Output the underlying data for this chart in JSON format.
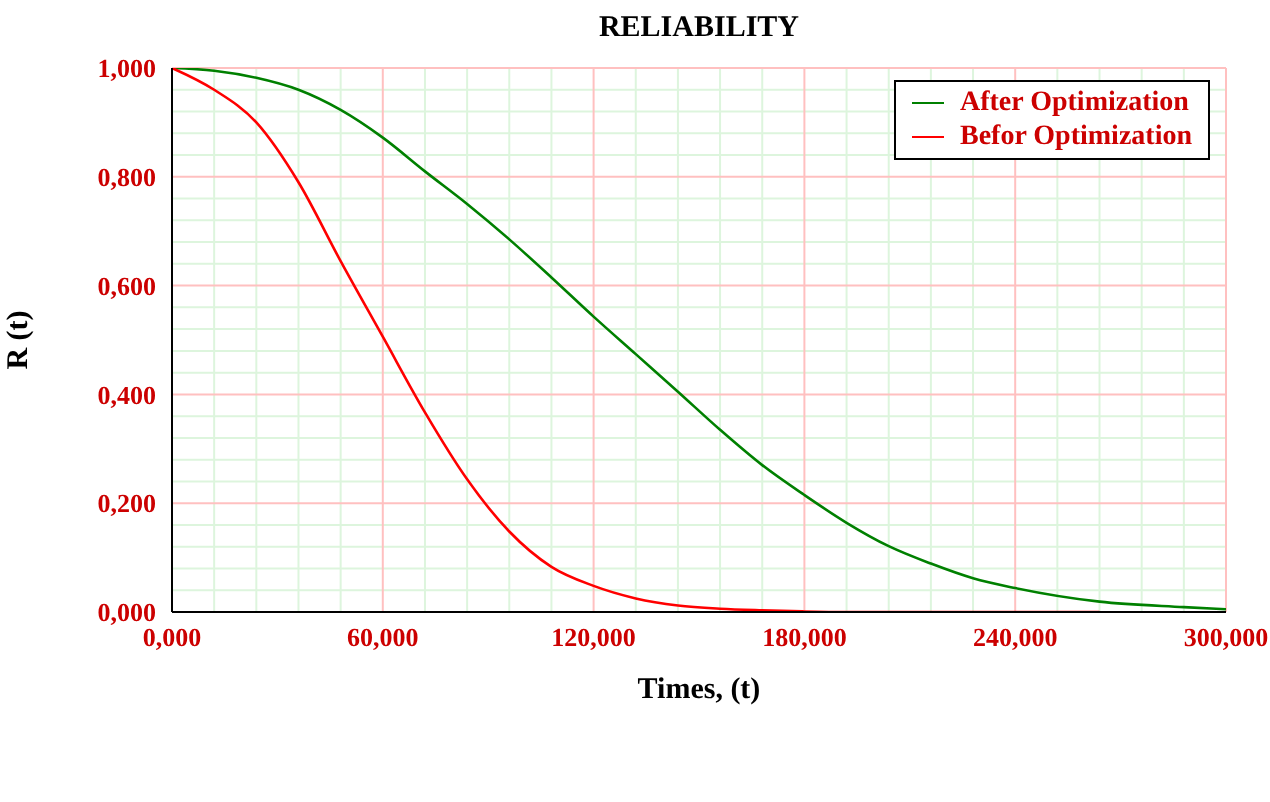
{
  "chart_data": {
    "type": "line",
    "title": "RELIABILITY",
    "xlabel": "Times, (t)",
    "ylabel": "R (t)",
    "x": [
      0,
      12,
      24,
      36,
      48,
      60,
      72,
      84,
      96,
      108,
      120,
      132,
      144,
      156,
      168,
      180,
      192,
      204,
      216,
      228,
      240,
      264,
      288,
      300
    ],
    "series": [
      {
        "name": "After Optimization",
        "color": "#008000",
        "values": [
          1.0,
          0.995,
          0.982,
          0.96,
          0.923,
          0.872,
          0.81,
          0.75,
          0.685,
          0.615,
          0.543,
          0.474,
          0.405,
          0.335,
          0.27,
          0.215,
          0.164,
          0.121,
          0.089,
          0.062,
          0.044,
          0.019,
          0.009,
          0.005
        ]
      },
      {
        "name": "Befor Optimization",
        "color": "#ff0000",
        "values": [
          1.0,
          0.96,
          0.9,
          0.79,
          0.645,
          0.506,
          0.367,
          0.244,
          0.148,
          0.083,
          0.048,
          0.025,
          0.012,
          0.006,
          0.003,
          0.001,
          0,
          0,
          0,
          0,
          0,
          0,
          null,
          null
        ]
      }
    ],
    "xlim": [
      0,
      300
    ],
    "ylim": [
      0,
      1
    ],
    "xticks": [
      {
        "value": 0,
        "label": "0,000"
      },
      {
        "value": 12,
        "label": null
      },
      {
        "value": 24,
        "label": null
      },
      {
        "value": 36,
        "label": null
      },
      {
        "value": 48,
        "label": null
      },
      {
        "value": 60,
        "label": "60,000"
      },
      {
        "value": 72,
        "label": null
      },
      {
        "value": 84,
        "label": null
      },
      {
        "value": 96,
        "label": null
      },
      {
        "value": 108,
        "label": null
      },
      {
        "value": 120,
        "label": "120,000"
      },
      {
        "value": 132,
        "label": null
      },
      {
        "value": 144,
        "label": null
      },
      {
        "value": 156,
        "label": null
      },
      {
        "value": 168,
        "label": null
      },
      {
        "value": 180,
        "label": "180,000"
      },
      {
        "value": 192,
        "label": null
      },
      {
        "value": 204,
        "label": null
      },
      {
        "value": 216,
        "label": null
      },
      {
        "value": 228,
        "label": null
      },
      {
        "value": 240,
        "label": "240,000"
      },
      {
        "value": 252,
        "label": null
      },
      {
        "value": 264,
        "label": null
      },
      {
        "value": 276,
        "label": null
      },
      {
        "value": 288,
        "label": null
      },
      {
        "value": 300,
        "label": "300,000"
      }
    ],
    "yticks": [
      {
        "value": 0,
        "label": "0,000"
      },
      {
        "value": 0.04,
        "label": null
      },
      {
        "value": 0.08,
        "label": null
      },
      {
        "value": 0.12,
        "label": null
      },
      {
        "value": 0.16,
        "label": null
      },
      {
        "value": 0.2,
        "label": "0,200"
      },
      {
        "value": 0.24,
        "label": null
      },
      {
        "value": 0.28,
        "label": null
      },
      {
        "value": 0.32,
        "label": null
      },
      {
        "value": 0.36,
        "label": null
      },
      {
        "value": 0.4,
        "label": "0,400"
      },
      {
        "value": 0.44,
        "label": null
      },
      {
        "value": 0.48,
        "label": null
      },
      {
        "value": 0.52,
        "label": null
      },
      {
        "value": 0.56,
        "label": null
      },
      {
        "value": 0.6,
        "label": "0,600"
      },
      {
        "value": 0.64,
        "label": null
      },
      {
        "value": 0.68,
        "label": null
      },
      {
        "value": 0.72,
        "label": null
      },
      {
        "value": 0.76,
        "label": null
      },
      {
        "value": 0.8,
        "label": "0,800"
      },
      {
        "value": 0.84,
        "label": null
      },
      {
        "value": 0.88,
        "label": null
      },
      {
        "value": 0.92,
        "label": null
      },
      {
        "value": 0.96,
        "label": null
      },
      {
        "value": 1,
        "label": "1,000"
      }
    ],
    "grid": true,
    "legend": "top right",
    "marker": "none",
    "line_style": "solid"
  }
}
